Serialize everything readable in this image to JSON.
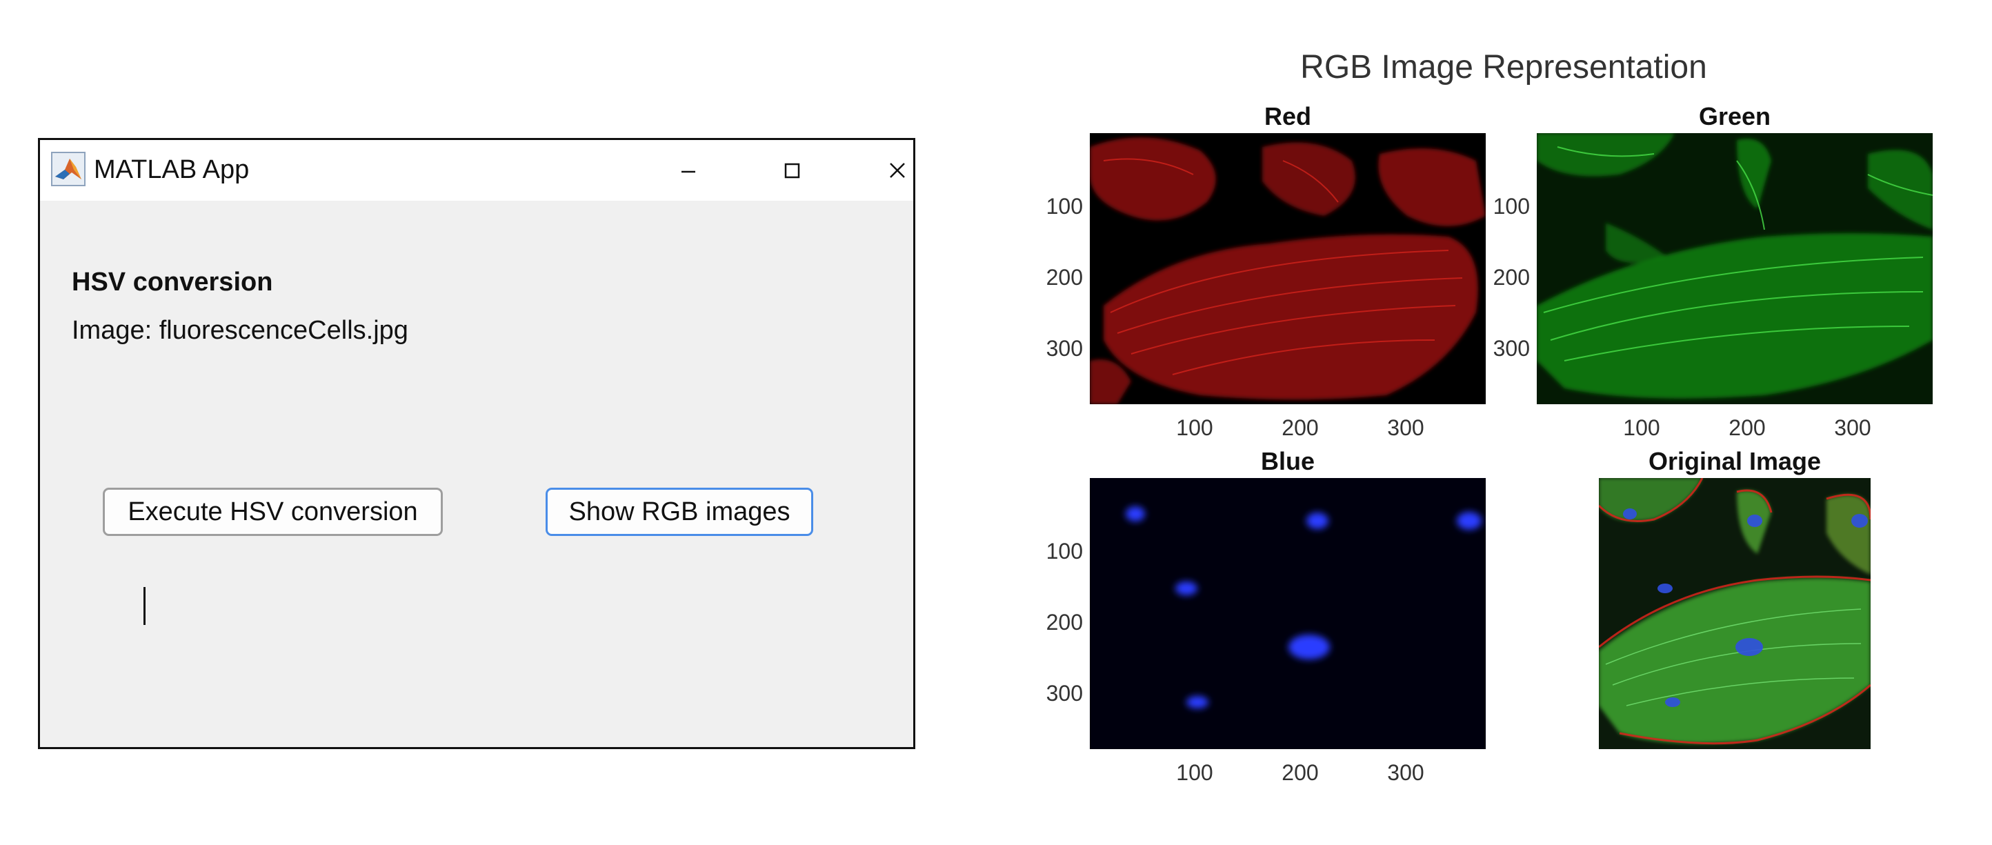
{
  "window": {
    "title": "MATLAB App",
    "heading": "HSV conversion",
    "image_label": "Image: fluorescenceCells.jpg",
    "buttons": {
      "execute": "Execute HSV conversion",
      "show_rgb": "Show RGB images"
    },
    "controls": [
      "minimize",
      "maximize",
      "close"
    ]
  },
  "figure": {
    "title": "RGB Image Representation",
    "panels": [
      {
        "title": "Red",
        "yticks": [
          "100",
          "200",
          "300"
        ],
        "xticks": [
          "100",
          "200",
          "300"
        ]
      },
      {
        "title": "Green",
        "yticks": [
          "100",
          "200",
          "300"
        ],
        "xticks": [
          "100",
          "200",
          "300"
        ]
      },
      {
        "title": "Blue",
        "yticks": [
          "100",
          "200",
          "300"
        ],
        "xticks": [
          "100",
          "200",
          "300"
        ]
      },
      {
        "title": "Original Image"
      }
    ]
  },
  "colors": {
    "red_channel": "#cc1a14",
    "green_channel": "#2bc22b",
    "blue_channel": "#1f3ce8",
    "button_focus_border": "#4a8de8"
  }
}
